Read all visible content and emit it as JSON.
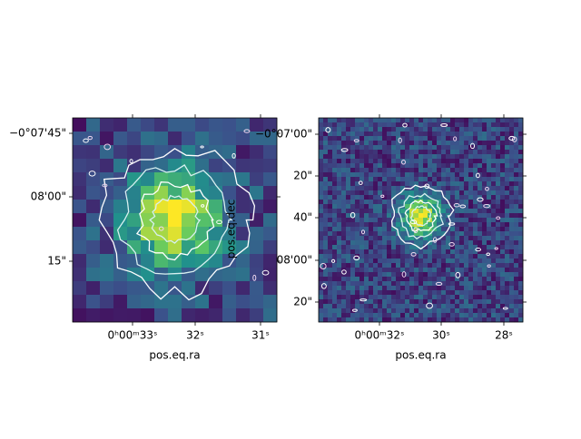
{
  "chart_data": [
    {
      "type": "image",
      "xlabel": "pos.eq.ra",
      "xticklabels": [
        "0ʰ00ᵐ33ˢ",
        "32ˢ",
        "31ˢ"
      ],
      "yticklabels": [
        "−0°07'45\"",
        "08'00\"",
        "15\""
      ]
    },
    {
      "type": "image",
      "xlabel": "pos.eq.ra",
      "ylabel": "pos.eq.dec",
      "xticklabels": [
        "0ʰ00ᵐ32ˢ",
        "30ˢ",
        "28ˢ"
      ],
      "yticklabels": [
        "−0°07'00\"",
        "20\"",
        "40\"",
        "08'00\"",
        "20\""
      ]
    }
  ]
}
